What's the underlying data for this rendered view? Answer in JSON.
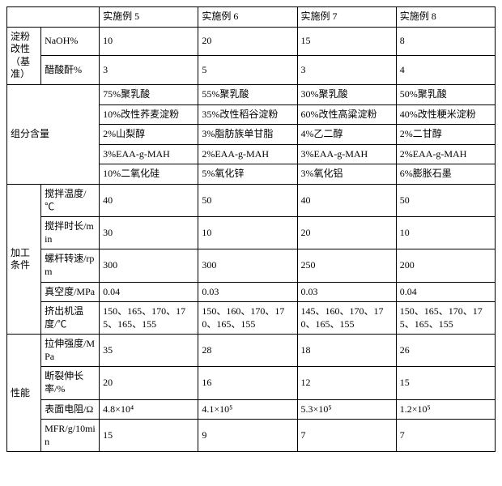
{
  "header": {
    "c1": "",
    "c2": "",
    "c3": "实施例 5",
    "c4": "实施例 6",
    "c5": "实施例 7",
    "c6": "实施例 8"
  },
  "g1": {
    "label": "淀粉改性（基准）",
    "r1": {
      "p": "NaOH%",
      "c3": "10",
      "c4": "20",
      "c5": "15",
      "c6": "8"
    },
    "r2": {
      "p": "醋酸酐%",
      "c3": "3",
      "c4": "5",
      "c5": "3",
      "c6": "4"
    }
  },
  "g2": {
    "label": "组分含量",
    "r1": {
      "c3": "75%聚乳酸",
      "c4": "55%聚乳酸",
      "c5": "30%聚乳酸",
      "c6": "50%聚乳酸"
    },
    "r2": {
      "c3": "10%改性荞麦淀粉",
      "c4": "35%改性稻谷淀粉",
      "c5": "60%改性高粱淀粉",
      "c6": "40%改性粳米淀粉"
    },
    "r3": {
      "c3": "2%山梨醇",
      "c4": "3%脂肪族单甘脂",
      "c5": "4%乙二醇",
      "c6": "2%二甘醇"
    },
    "r4": {
      "c3": "3%EAA-g-MAH",
      "c4": "2%EAA-g-MAH",
      "c5": "3%EAA-g-MAH",
      "c6": "2%EAA-g-MAH"
    },
    "r5": {
      "c3": "10%二氧化硅",
      "c4": "5%氧化锌",
      "c5": "3%氧化铝",
      "c6": "6%膨胀石墨"
    }
  },
  "g3": {
    "label": "加工条件",
    "r1": {
      "p": "搅拌温度/℃",
      "c3": "40",
      "c4": "50",
      "c5": "40",
      "c6": "50"
    },
    "r2": {
      "p": "搅拌时长/min",
      "c3": "30",
      "c4": "10",
      "c5": "20",
      "c6": "10"
    },
    "r3": {
      "p": "螺杆转速/rpm",
      "c3": "300",
      "c4": "300",
      "c5": "250",
      "c6": "200"
    },
    "r4": {
      "p": "真空度/MPa",
      "c3": "0.04",
      "c4": "0.03",
      "c5": "0.03",
      "c6": "0.04"
    },
    "r5": {
      "p": "挤出机温度/℃",
      "c3": "150、165、170、175、165、155",
      "c4": "150、160、170、170、165、155",
      "c5": "145、160、170、170、165、155",
      "c6": "150、165、170、175、165、155"
    }
  },
  "g4": {
    "label": "性能",
    "r1": {
      "p": "拉伸强度/MPa",
      "c3": "35",
      "c4": "28",
      "c5": "18",
      "c6": "26"
    },
    "r2": {
      "p": "断裂伸长率/%",
      "c3": "20",
      "c4": "16",
      "c5": "12",
      "c6": "15"
    },
    "r3": {
      "p": "表面电阻/Ω",
      "c3": "4.8×10⁴",
      "c4": "4.1×10⁵",
      "c5": "5.3×10⁵",
      "c6": "1.2×10⁵"
    },
    "r4": {
      "p": "MFR/g/10min",
      "c3": "15",
      "c4": "9",
      "c5": "7",
      "c6": "7"
    }
  }
}
